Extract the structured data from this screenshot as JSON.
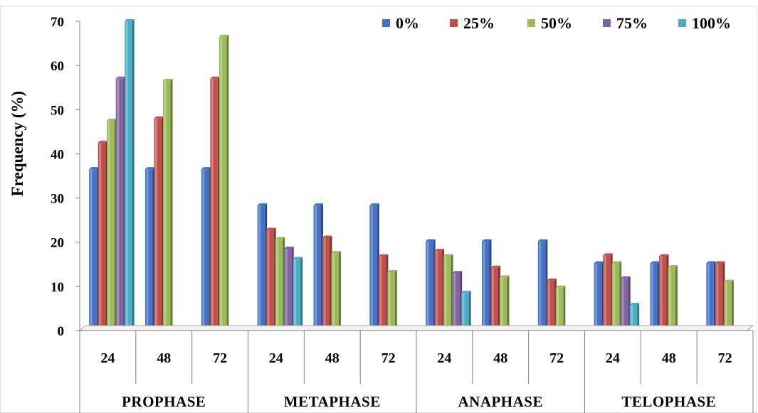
{
  "chart_data": {
    "type": "bar",
    "ylabel": "Frequency (%)",
    "ylim": [
      0,
      70
    ],
    "yticks": [
      0,
      10,
      20,
      30,
      40,
      50,
      60,
      70
    ],
    "legend_position": "top-right",
    "groups": [
      "PROPHASE",
      "METAPHASE",
      "ANAPHASE",
      "TELOPHASE"
    ],
    "subcategories": [
      "24",
      "48",
      "72"
    ],
    "series": [
      {
        "name": "0%",
        "color": "#4472C4",
        "values": [
          36.5,
          36.5,
          36.5,
          28.3,
          28.3,
          28.3,
          20.2,
          20.2,
          20.2,
          15.2,
          15.2,
          15.2
        ]
      },
      {
        "name": "25%",
        "color": "#C0504D",
        "values": [
          42.5,
          48.0,
          57.0,
          22.8,
          21.0,
          16.8,
          18.0,
          14.2,
          11.3,
          17.0,
          16.8,
          15.2
        ]
      },
      {
        "name": "50%",
        "color": "#9BBB59",
        "values": [
          47.5,
          56.5,
          66.5,
          20.7,
          17.5,
          13.2,
          16.8,
          12.0,
          9.7,
          15.2,
          14.3,
          11.0
        ]
      },
      {
        "name": "75%",
        "color": "#8064A2",
        "values": [
          57.0,
          0,
          0,
          18.5,
          0,
          0,
          13.0,
          0,
          0,
          11.8,
          0,
          0
        ]
      },
      {
        "name": "100%",
        "color": "#4BACC6",
        "values": [
          70.0,
          0,
          0,
          16.2,
          0,
          0,
          8.5,
          0,
          0,
          5.8,
          0,
          0
        ]
      }
    ]
  }
}
